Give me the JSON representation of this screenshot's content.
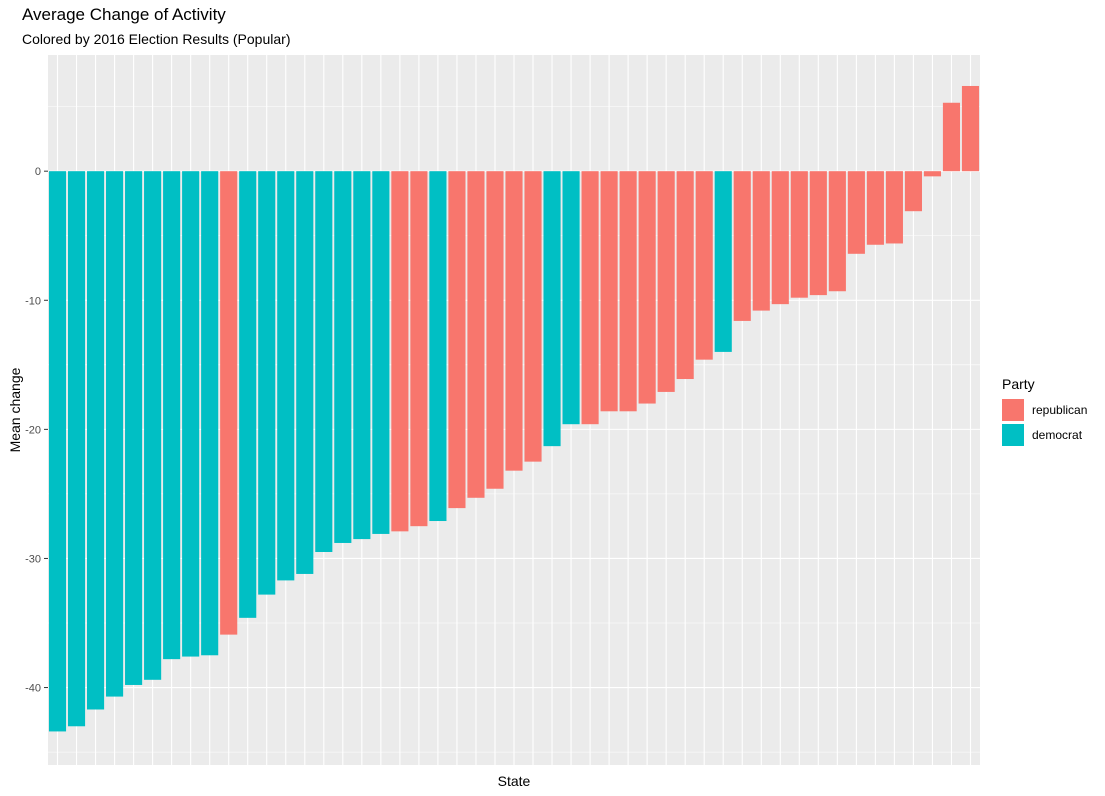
{
  "chart_data": {
    "type": "bar",
    "title": "Average Change of Activity",
    "subtitle": "Colored by 2016 Election Results (Popular)",
    "xlabel": "State",
    "ylabel": "Mean change",
    "ylim": [
      -46,
      9
    ],
    "yticks": [
      0,
      -10,
      -20,
      -30,
      -40
    ],
    "grid": true,
    "legend": {
      "title": "Party",
      "placement": "right",
      "entries": [
        {
          "name": "republican",
          "color": "#F8766D"
        },
        {
          "name": "democrat",
          "color": "#00BFC4"
        }
      ]
    },
    "colors": {
      "republican": "#F8766D",
      "democrat": "#00BFC4"
    },
    "values": [
      -43.4,
      -43.0,
      -41.7,
      -40.7,
      -39.8,
      -39.4,
      -37.8,
      -37.6,
      -37.5,
      -35.9,
      -34.6,
      -32.8,
      -31.7,
      -31.2,
      -29.5,
      -28.8,
      -28.5,
      -28.1,
      -27.9,
      -27.5,
      -27.1,
      -26.1,
      -25.3,
      -24.6,
      -23.2,
      -22.5,
      -21.3,
      -19.6,
      -19.6,
      -18.6,
      -18.6,
      -18.0,
      -17.1,
      -16.1,
      -14.6,
      -14.0,
      -11.6,
      -10.8,
      -10.3,
      -9.8,
      -9.6,
      -9.3,
      -6.4,
      -5.7,
      -5.6,
      -3.1,
      -0.4,
      5.3,
      6.6
    ],
    "party": [
      "democrat",
      "democrat",
      "democrat",
      "democrat",
      "democrat",
      "democrat",
      "democrat",
      "democrat",
      "democrat",
      "republican",
      "democrat",
      "democrat",
      "democrat",
      "democrat",
      "democrat",
      "democrat",
      "democrat",
      "democrat",
      "republican",
      "republican",
      "democrat",
      "republican",
      "republican",
      "republican",
      "republican",
      "republican",
      "democrat",
      "democrat",
      "republican",
      "republican",
      "republican",
      "republican",
      "republican",
      "republican",
      "republican",
      "democrat",
      "republican",
      "republican",
      "republican",
      "republican",
      "republican",
      "republican",
      "republican",
      "republican",
      "republican",
      "republican",
      "republican",
      "republican",
      "republican"
    ]
  }
}
